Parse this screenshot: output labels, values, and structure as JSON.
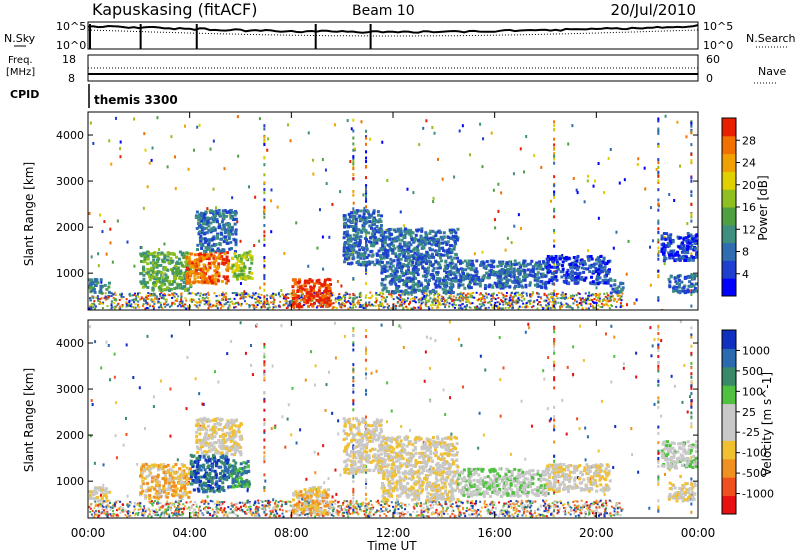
{
  "header": {
    "station": "Kapuskasing (fitACF)",
    "beam": "Beam 10",
    "date": "20/Jul/2010"
  },
  "top_panels": {
    "nsky_label": "N.Sky",
    "nsky_ticks": [
      "10^5",
      "10^0"
    ],
    "nsearch_label": "N.Search",
    "nsearch_ticks": [
      "10^5",
      "10^0"
    ],
    "freq_label": "Freq.",
    "freq_unit": "[MHz]",
    "freq_ticks": [
      "18",
      "8"
    ],
    "nave_label": "Nave",
    "nave_ticks": [
      "60",
      "0"
    ],
    "cpid_label": "CPID",
    "cpid_name": "themis 3300"
  },
  "chart_data": [
    {
      "type": "heatmap",
      "name": "power",
      "ylabel": "Slant Range [km]",
      "xlabel": "",
      "yticks": [
        "1000",
        "2000",
        "3000",
        "4000"
      ],
      "ylim": [
        200,
        4500
      ],
      "xlim": [
        0,
        24
      ],
      "colorbar": {
        "label": "Power [dB]",
        "ticks": [
          "28",
          "24",
          "20",
          "16",
          "12",
          "8",
          "4"
        ],
        "colors": [
          "#0000ff",
          "#1f3fd0",
          "#2f6cb0",
          "#3f8f7f",
          "#4fa040",
          "#8fc020",
          "#e0d000",
          "#f0a000",
          "#f07000",
          "#e82000"
        ]
      },
      "blobs": [
        {
          "t0": 0.0,
          "t1": 0.8,
          "r0": 600,
          "r1": 900,
          "lvl": 3
        },
        {
          "t0": 2.0,
          "t1": 4.0,
          "r0": 650,
          "r1": 1500,
          "lvl": 4
        },
        {
          "t0": 3.8,
          "t1": 5.5,
          "r0": 800,
          "r1": 1500,
          "lvl": 8
        },
        {
          "t0": 4.2,
          "t1": 5.8,
          "r0": 1500,
          "r1": 2400,
          "lvl": 2
        },
        {
          "t0": 5.6,
          "t1": 6.4,
          "r0": 900,
          "r1": 1500,
          "lvl": 5
        },
        {
          "t0": 8.0,
          "t1": 9.5,
          "r0": 300,
          "r1": 900,
          "lvl": 9
        },
        {
          "t0": 10.0,
          "t1": 11.5,
          "r0": 1200,
          "r1": 2400,
          "lvl": 2
        },
        {
          "t0": 11.5,
          "t1": 14.5,
          "r0": 600,
          "r1": 2000,
          "lvl": 2
        },
        {
          "t0": 14.5,
          "t1": 18.0,
          "r0": 700,
          "r1": 1300,
          "lvl": 2
        },
        {
          "t0": 18.0,
          "t1": 20.5,
          "r0": 800,
          "r1": 1400,
          "lvl": 1
        },
        {
          "t0": 20.5,
          "t1": 21.0,
          "r0": 600,
          "r1": 900,
          "lvl": 2
        },
        {
          "t0": 22.5,
          "t1": 23.9,
          "r0": 1300,
          "r1": 1900,
          "lvl": 1
        },
        {
          "t0": 22.8,
          "t1": 23.9,
          "r0": 600,
          "r1": 1000,
          "lvl": 2
        }
      ]
    },
    {
      "type": "heatmap",
      "name": "velocity",
      "ylabel": "Slant Range [km]",
      "xlabel": "Time UT",
      "yticks": [
        "1000",
        "2000",
        "3000",
        "4000"
      ],
      "ylim": [
        200,
        4500
      ],
      "xlim": [
        0,
        24
      ],
      "xticks": [
        "00:00",
        "04:00",
        "08:00",
        "12:00",
        "16:00",
        "20:00",
        "00:00"
      ],
      "colorbar": {
        "label": "Velocity [m s^-1]",
        "ticks": [
          "1000",
          "500",
          "100",
          "25",
          "-25",
          "-100",
          "-500",
          "-1000"
        ],
        "colors": [
          "#e81010",
          "#f05020",
          "#f09020",
          "#f0c030",
          "#c8c8c8",
          "#c8c8c8",
          "#50c040",
          "#3a8a6a",
          "#2a6ab0",
          "#1030c0"
        ]
      },
      "blobs": [
        {
          "t0": 0.0,
          "t1": 0.8,
          "r0": 600,
          "r1": 900,
          "lvl": 4
        },
        {
          "t0": 2.0,
          "t1": 4.0,
          "r0": 650,
          "r1": 1400,
          "lvl": 3
        },
        {
          "t0": 4.0,
          "t1": 5.5,
          "r0": 800,
          "r1": 1600,
          "lvl": 8
        },
        {
          "t0": 4.2,
          "t1": 6.0,
          "r0": 1600,
          "r1": 2400,
          "lvl": 4
        },
        {
          "t0": 5.5,
          "t1": 6.3,
          "r0": 900,
          "r1": 1500,
          "lvl": 7
        },
        {
          "t0": 8.0,
          "t1": 9.5,
          "r0": 300,
          "r1": 900,
          "lvl": 3
        },
        {
          "t0": 10.0,
          "t1": 11.5,
          "r0": 1200,
          "r1": 2400,
          "lvl": 4
        },
        {
          "t0": 11.5,
          "t1": 14.5,
          "r0": 600,
          "r1": 2000,
          "lvl": 4
        },
        {
          "t0": 14.5,
          "t1": 18.0,
          "r0": 700,
          "r1": 1300,
          "lvl": 5
        },
        {
          "t0": 18.0,
          "t1": 20.5,
          "r0": 800,
          "r1": 1400,
          "lvl": 4
        },
        {
          "t0": 22.5,
          "t1": 23.9,
          "r0": 1300,
          "r1": 1900,
          "lvl": 5
        },
        {
          "t0": 22.8,
          "t1": 23.9,
          "r0": 600,
          "r1": 1000,
          "lvl": 4
        }
      ]
    }
  ]
}
